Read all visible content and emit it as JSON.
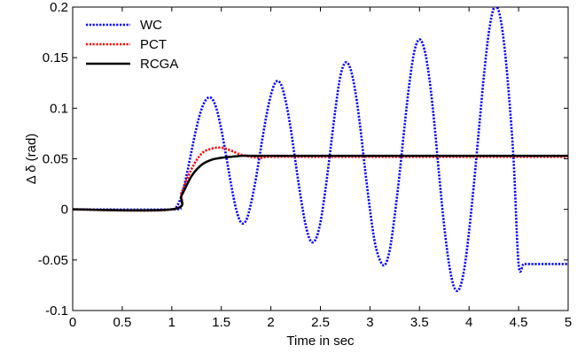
{
  "chart_data": {
    "type": "line",
    "xlabel": "Time in sec",
    "ylabel": "Δ δ (rad)",
    "xlim": [
      0,
      5
    ],
    "ylim": [
      -0.1,
      0.2
    ],
    "xticks": [
      0,
      0.5,
      1,
      1.5,
      2,
      2.5,
      3,
      3.5,
      4,
      4.5,
      5
    ],
    "xtick_labels": [
      "0",
      "0.5",
      "1",
      "1.5",
      "2",
      "2.5",
      "3",
      "3.5",
      "4",
      "4.5",
      "5"
    ],
    "yticks": [
      -0.1,
      -0.05,
      0,
      0.05,
      0.1,
      0.15,
      0.2
    ],
    "ytick_labels": [
      "-0.1",
      "-0.05",
      "0",
      "0.05",
      "0.1",
      "0.15",
      "0.2"
    ],
    "grid": false,
    "legend_position": "top-left",
    "series": [
      {
        "name": "WC",
        "color": "#0000ff",
        "style": "dotted",
        "x": [
          0,
          1.0,
          1.05,
          1.1,
          1.15,
          1.2,
          1.25,
          1.3,
          1.35,
          1.4,
          1.45,
          1.5,
          1.55,
          1.6,
          1.65,
          1.7,
          1.75,
          1.8,
          1.85,
          1.9,
          1.95,
          2.0,
          2.05,
          2.1,
          2.15,
          2.2,
          2.25,
          2.3,
          2.35,
          2.4,
          2.45,
          2.5,
          2.55,
          2.6,
          2.65,
          2.7,
          2.75,
          2.8,
          2.85,
          2.9,
          2.95,
          3.0,
          3.05,
          3.1,
          3.15,
          3.2,
          3.25,
          3.3,
          3.35,
          3.4,
          3.45,
          3.5,
          3.55,
          3.6,
          3.65,
          3.7,
          3.75,
          3.8,
          3.85,
          3.9,
          3.95,
          4.0,
          4.05,
          4.1,
          4.15,
          4.2,
          4.25,
          4.3,
          4.35,
          4.4,
          4.45,
          4.5,
          4.55,
          4.6,
          4.65,
          4.7,
          4.75,
          4.8,
          4.85,
          4.9,
          4.95,
          5.0
        ],
        "y": [
          0,
          0,
          0.003,
          0.014,
          0.034,
          0.058,
          0.081,
          0.099,
          0.109,
          0.11,
          0.1,
          0.079,
          0.052,
          0.024,
          0.0,
          -0.013,
          -0.011,
          0.006,
          0.031,
          0.061,
          0.09,
          0.113,
          0.126,
          0.124,
          0.107,
          0.08,
          0.046,
          0.013,
          -0.015,
          -0.031,
          -0.03,
          -0.013,
          0.019,
          0.058,
          0.098,
          0.131,
          0.145,
          0.14,
          0.118,
          0.083,
          0.04,
          0.0,
          -0.033,
          -0.05,
          -0.055,
          -0.04,
          -0.006,
          0.036,
          0.083,
          0.126,
          0.157,
          0.168,
          0.158,
          0.129,
          0.085,
          0.032,
          -0.017,
          -0.055,
          -0.077,
          -0.079,
          -0.06,
          -0.022,
          0.026,
          0.079,
          0.132,
          0.175,
          0.199,
          0.196,
          0.167,
          0.116,
          0.048,
          -0.054,
          -0.054,
          -0.054,
          -0.054,
          -0.054,
          -0.054,
          -0.054,
          -0.054,
          -0.054,
          -0.054,
          -0.054
        ]
      },
      {
        "name": "PCT",
        "color": "#ff0000",
        "style": "dotted",
        "x": [
          0,
          1.0,
          1.1,
          1.2,
          1.3,
          1.4,
          1.5,
          1.6,
          1.7,
          1.8,
          1.9,
          2.0,
          2.5,
          3.0,
          3.5,
          4.0,
          4.5,
          5.0
        ],
        "y": [
          0,
          0,
          0.017,
          0.04,
          0.055,
          0.06,
          0.061,
          0.058,
          0.054,
          0.052,
          0.051,
          0.052,
          0.052,
          0.052,
          0.052,
          0.052,
          0.052,
          0.052
        ]
      },
      {
        "name": "RCGA",
        "color": "#000000",
        "style": "solid",
        "x": [
          0,
          1.0,
          1.1,
          1.2,
          1.3,
          1.4,
          1.5,
          1.6,
          1.7,
          1.8,
          2.0,
          2.5,
          3.0,
          3.5,
          4.0,
          4.5,
          5.0
        ],
        "y": [
          0,
          0,
          0.014,
          0.033,
          0.044,
          0.049,
          0.051,
          0.052,
          0.053,
          0.053,
          0.053,
          0.053,
          0.053,
          0.053,
          0.053,
          0.053,
          0.053
        ]
      }
    ]
  }
}
